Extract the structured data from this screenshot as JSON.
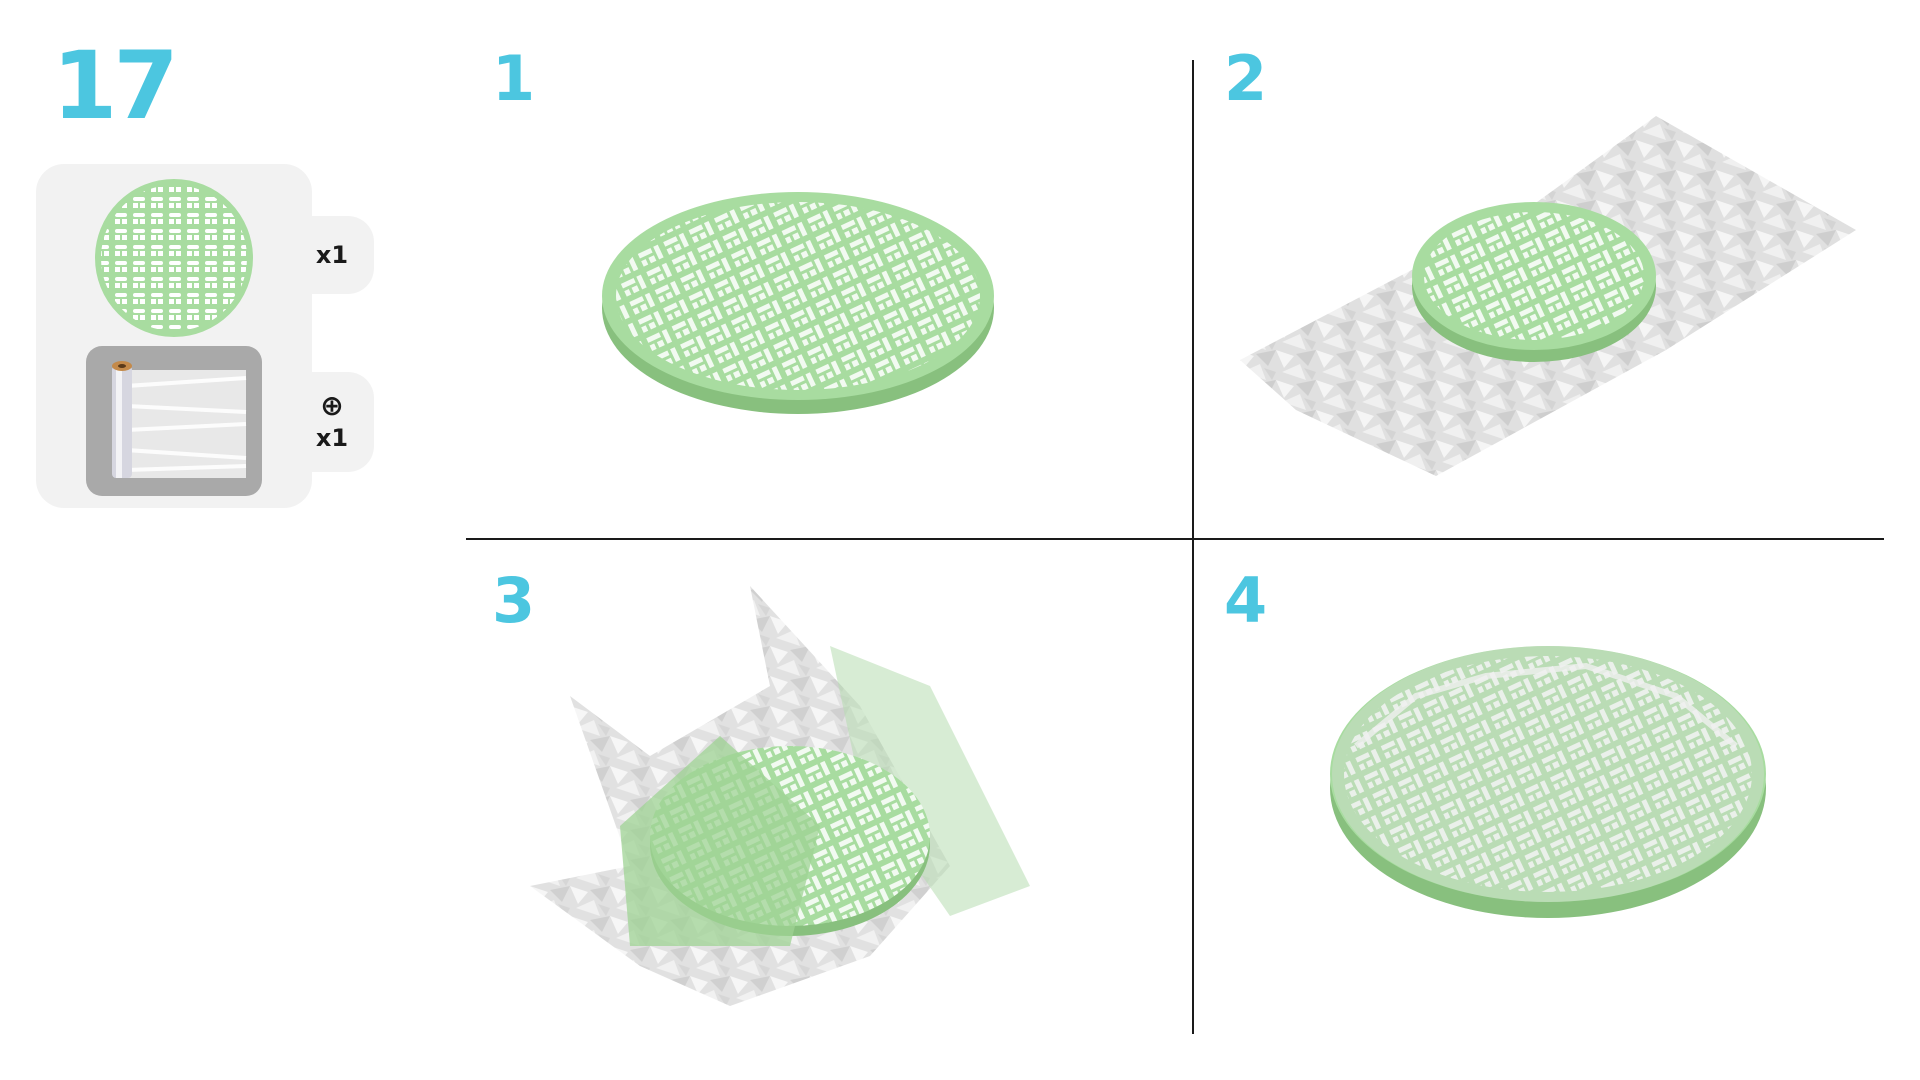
{
  "step": {
    "number": "17",
    "accent_color": "#4cc6e0"
  },
  "parts": {
    "items": [
      {
        "name": "green-mesh-disc",
        "quantity": "x1",
        "color": "#a8dca0"
      },
      {
        "name": "plastic-wrap-roll",
        "quantity": "x1",
        "extra_icon": "plus-circle-icon"
      }
    ],
    "plus_symbol": "⊕"
  },
  "substeps": [
    {
      "number": "1"
    },
    {
      "number": "2"
    },
    {
      "number": "3"
    },
    {
      "number": "4"
    }
  ],
  "colors": {
    "mesh_green": "#a8dca0",
    "mesh_green_dark": "#88c07e",
    "film_gray": "#d8d8d8",
    "panel_bg": "#f2f2f2"
  }
}
